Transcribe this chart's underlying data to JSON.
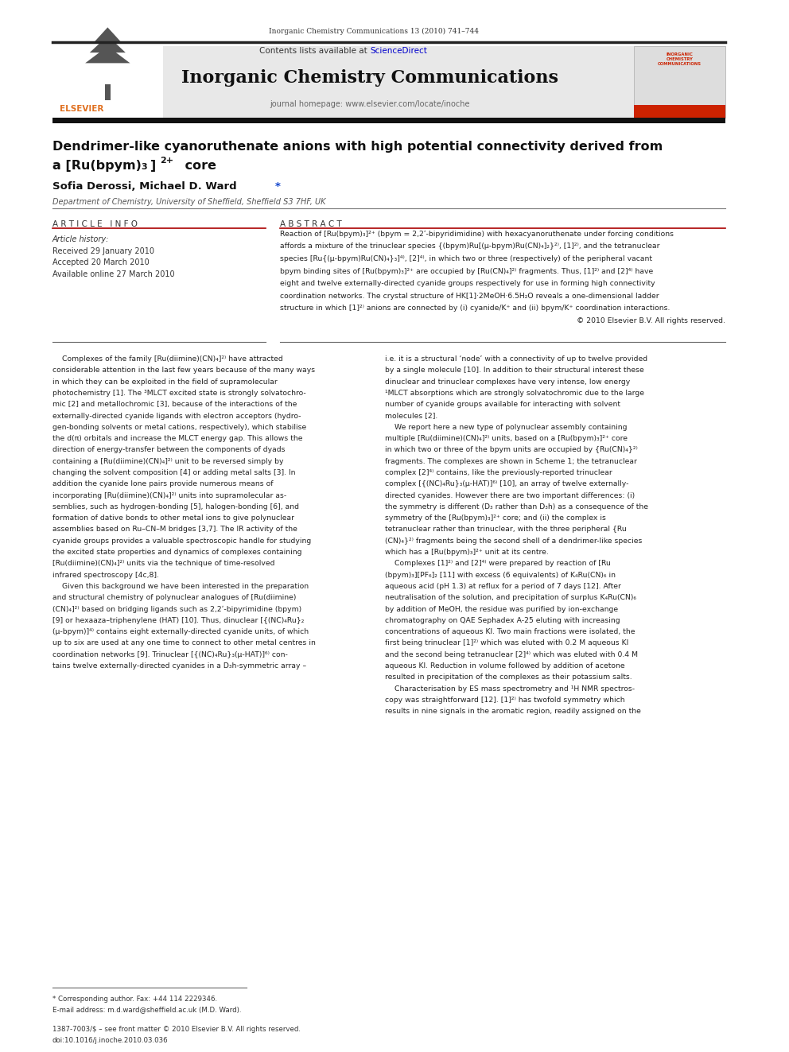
{
  "page_width": 9.92,
  "page_height": 13.23,
  "bg_color": "#ffffff",
  "journal_ref": "Inorganic Chemistry Communications 13 (2010) 741–744",
  "header_bg": "#e8e8e8",
  "sciencedirect_color": "#0000cc",
  "journal_title": "Inorganic Chemistry Communications",
  "journal_homepage": "journal homepage: www.elsevier.com/locate/inoche",
  "article_title_line1": "Dendrimer-like cyanoruthenate anions with high potential connectivity derived from",
  "affiliation": "Department of Chemistry, University of Sheffield, Sheffield S3 7HF, UK",
  "article_info_header": "A R T I C L E   I N F O",
  "abstract_header": "A B S T R A C T",
  "article_history_label": "Article history:",
  "received": "Received 29 January 2010",
  "accepted": "Accepted 20 March 2010",
  "available": "Available online 27 March 2010",
  "footnote_line1": "* Corresponding author. Fax: +44 114 2229346.",
  "footnote_line2": "E-mail address: m.d.ward@sheffield.ac.uk (M.D. Ward).",
  "footer_line1": "1387-7003/$ – see front matter © 2010 Elsevier B.V. All rights reserved.",
  "footer_line2": "doi:10.1016/j.inoche.2010.03.036",
  "abstract_lines": [
    "Reaction of [Ru(bpym)₃]²⁺ (bpym = 2,2ʹ-bipyridimidine) with hexacyanoruthenate under forcing conditions",
    "affords a mixture of the trinuclear species {(bpym)Ru[(μ-bpym)Ru(CN)₄]₂}²⁾, [1]²⁾, and the tetranuclear",
    "species [Ru{(μ-bpym)Ru(CN)₄}₃]⁴⁾, [2]⁴⁾, in which two or three (respectively) of the peripheral vacant",
    "bpym binding sites of [Ru(bpym)₃]²⁺ are occupied by [Ru(CN)₄]²⁾ fragments. Thus, [1]²⁾ and [2]⁴⁾ have",
    "eight and twelve externally-directed cyanide groups respectively for use in forming high connectivity",
    "coordination networks. The crystal structure of HK[1]·2MeOH·6.5H₂O reveals a one-dimensional ladder",
    "structure in which [1]²⁾ anions are connected by (i) cyanide/K⁺ and (ii) bpym/K⁺ coordination interactions.",
    "© 2010 Elsevier B.V. All rights reserved."
  ],
  "col1_lines": [
    "    Complexes of the family [Ru(diimine)(CN)₄]²⁾ have attracted",
    "considerable attention in the last few years because of the many ways",
    "in which they can be exploited in the field of supramolecular",
    "photochemistry [1]. The ³MLCT excited state is strongly solvatochro-",
    "mic [2] and metallochromic [3], because of the interactions of the",
    "externally-directed cyanide ligands with electron acceptors (hydro-",
    "gen-bonding solvents or metal cations, respectively), which stabilise",
    "the d(π) orbitals and increase the MLCT energy gap. This allows the",
    "direction of energy-transfer between the components of dyads",
    "containing a [Ru(diimine)(CN)₄]²⁾ unit to be reversed simply by",
    "changing the solvent composition [4] or adding metal salts [3]. In",
    "addition the cyanide lone pairs provide numerous means of",
    "incorporating [Ru(diimine)(CN)₄]²⁾ units into supramolecular as-",
    "semblies, such as hydrogen-bonding [5], halogen-bonding [6], and",
    "formation of dative bonds to other metal ions to give polynuclear",
    "assemblies based on Ru–CN–M bridges [3,7]. The IR activity of the",
    "cyanide groups provides a valuable spectroscopic handle for studying",
    "the excited state properties and dynamics of complexes containing",
    "[Ru(diimine)(CN)₄]²⁾ units via the technique of time-resolved",
    "infrared spectroscopy [4c,8].",
    "    Given this background we have been interested in the preparation",
    "and structural chemistry of polynuclear analogues of [Ru(diimine)",
    "(CN)₄]²⁾ based on bridging ligands such as 2,2ʹ-bipyrimidine (bpym)",
    "[9] or hexaaza–triphenylene (HAT) [10]. Thus, dinuclear [{(NC)₄Ru}₂",
    "(μ-bpym)]⁴⁾ contains eight externally-directed cyanide units, of which",
    "up to six are used at any one time to connect to other metal centres in",
    "coordination networks [9]. Trinuclear [{(NC)₄Ru}₃(μ-HAT)]⁶⁾ con-",
    "tains twelve externally-directed cyanides in a D₃h-symmetric array –"
  ],
  "col2_lines": [
    "i.e. it is a structural ‘node’ with a connectivity of up to twelve provided",
    "by a single molecule [10]. In addition to their structural interest these",
    "dinuclear and trinuclear complexes have very intense, low energy",
    "¹MLCT absorptions which are strongly solvatochromic due to the large",
    "number of cyanide groups available for interacting with solvent",
    "molecules [2].",
    "    We report here a new type of polynuclear assembly containing",
    "multiple [Ru(diimine)(CN)₄]²⁾ units, based on a [Ru(bpym)₃]²⁺ core",
    "in which two or three of the bpym units are occupied by {Ru(CN)₄}²⁾",
    "fragments. The complexes are shown in Scheme 1; the tetranuclear",
    "complex [2]⁴⁾ contains, like the previously-reported trinuclear",
    "complex [{(NC)₄Ru}₃(μ-HAT)]⁶⁾ [10], an array of twelve externally-",
    "directed cyanides. However there are two important differences: (i)",
    "the symmetry is different (D₃ rather than D₃h) as a consequence of the",
    "symmetry of the [Ru(bpym)₃]²⁺ core; and (ii) the complex is",
    "tetranuclear rather than trinuclear, with the three peripheral {Ru",
    "(CN)₄}²⁾ fragments being the second shell of a dendrimer-like species",
    "which has a [Ru(bpym)₃]²⁺ unit at its centre.",
    "    Complexes [1]²⁾ and [2]⁴⁾ were prepared by reaction of [Ru",
    "(bpym)₃][PF₆]₂ [11] with excess (6 equivalents) of K₄Ru(CN)₆ in",
    "aqueous acid (pH 1.3) at reflux for a period of 7 days [12]. After",
    "neutralisation of the solution, and precipitation of surplus K₄Ru(CN)₆",
    "by addition of MeOH, the residue was purified by ion-exchange",
    "chromatography on QAE Sephadex A-25 eluting with increasing",
    "concentrations of aqueous KI. Two main fractions were isolated, the",
    "first being trinuclear [1]²⁾ which was eluted with 0.2 M aqueous KI",
    "and the second being tetranuclear [2]⁴⁾ which was eluted with 0.4 M",
    "aqueous KI. Reduction in volume followed by addition of acetone",
    "resulted in precipitation of the complexes as their potassium salts.",
    "    Characterisation by ES mass spectrometry and ¹H NMR spectros-",
    "copy was straightforward [12]. [1]²⁾ has twofold symmetry which",
    "results in nine signals in the aromatic region, readily assigned on the"
  ]
}
